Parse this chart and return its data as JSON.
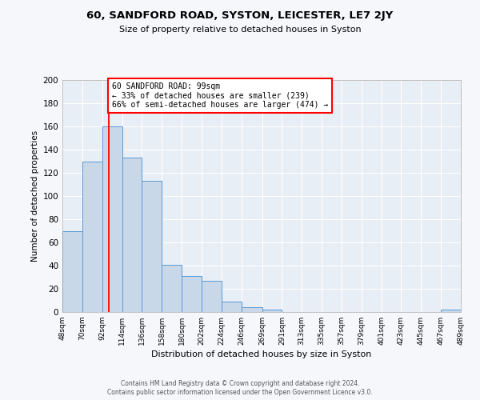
{
  "title": "60, SANDFORD ROAD, SYSTON, LEICESTER, LE7 2JY",
  "subtitle": "Size of property relative to detached houses in Syston",
  "xlabel": "Distribution of detached houses by size in Syston",
  "ylabel": "Number of detached properties",
  "bar_color": "#c8d8e8",
  "bar_edge_color": "#5b9bd5",
  "background_color": "#e8eef5",
  "fig_background_color": "#f5f7fa",
  "grid_color": "#ffffff",
  "annotation_text": "60 SANDFORD ROAD: 99sqm\n← 33% of detached houses are smaller (239)\n66% of semi-detached houses are larger (474) →",
  "red_line_x": 99,
  "bins": [
    48,
    70,
    92,
    114,
    136,
    158,
    180,
    202,
    224,
    246,
    269,
    291,
    313,
    335,
    357,
    379,
    401,
    423,
    445,
    467,
    489
  ],
  "counts": [
    70,
    130,
    160,
    133,
    113,
    41,
    31,
    27,
    9,
    4,
    2,
    0,
    0,
    0,
    0,
    0,
    0,
    0,
    0,
    2
  ],
  "ylim": [
    0,
    200
  ],
  "yticks": [
    0,
    20,
    40,
    60,
    80,
    100,
    120,
    140,
    160,
    180,
    200
  ],
  "xtick_labels": [
    "48sqm",
    "70sqm",
    "92sqm",
    "114sqm",
    "136sqm",
    "158sqm",
    "180sqm",
    "202sqm",
    "224sqm",
    "246sqm",
    "269sqm",
    "291sqm",
    "313sqm",
    "335sqm",
    "357sqm",
    "379sqm",
    "401sqm",
    "423sqm",
    "445sqm",
    "467sqm",
    "489sqm"
  ],
  "footer_line1": "Contains HM Land Registry data © Crown copyright and database right 2024.",
  "footer_line2": "Contains public sector information licensed under the Open Government Licence v3.0."
}
